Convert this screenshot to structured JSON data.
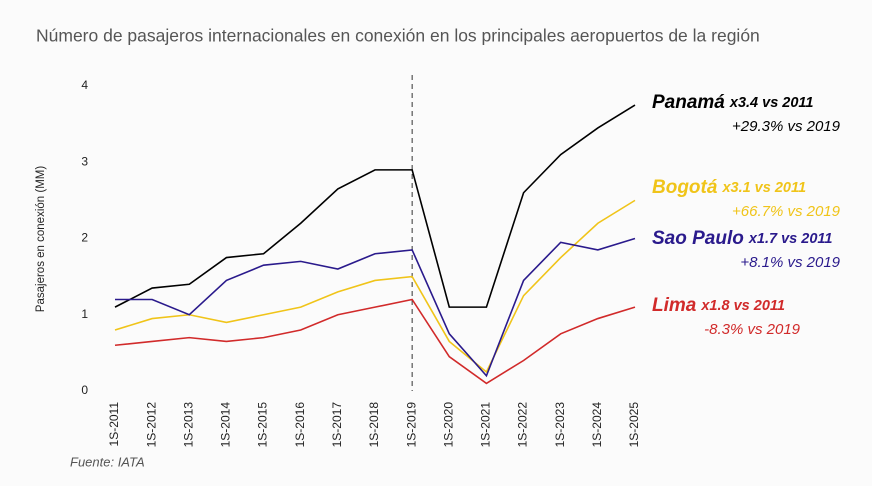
{
  "chart_data": {
    "type": "line",
    "title": "Número de pasajeros internacionales en conexión en los principales aeropuertos de la región",
    "y_label": "Pasajeros en conexión (MM)",
    "source": "Fuente: IATA",
    "categories": [
      "1S-2011",
      "1S-2012",
      "1S-2013",
      "1S-2014",
      "1S-2015",
      "1S-2016",
      "1S-2017",
      "1S-2018",
      "1S-2019",
      "1S-2020",
      "1S-2021",
      "1S-2022",
      "1S-2023",
      "1S-2024",
      "1S-2025"
    ],
    "reference_line": "1S-2019",
    "ylim": [
      0,
      4
    ],
    "yticks": [
      0,
      1,
      2,
      3,
      4
    ],
    "grid": false,
    "series": [
      {
        "name": "Panamá",
        "color": "#000000",
        "growth": "x3.4 vs 2011",
        "change": "+29.3% vs 2019",
        "values": [
          1.1,
          1.35,
          1.4,
          1.75,
          1.8,
          2.2,
          2.65,
          2.9,
          2.9,
          1.1,
          1.1,
          2.6,
          3.1,
          3.45,
          3.75
        ]
      },
      {
        "name": "Bogotá",
        "color": "#f0c419",
        "growth": "x3.1 vs 2011",
        "change": "+66.7% vs 2019",
        "values": [
          0.8,
          0.95,
          1.0,
          0.9,
          1.0,
          1.1,
          1.3,
          1.45,
          1.5,
          0.65,
          0.25,
          1.25,
          1.75,
          2.2,
          2.5
        ]
      },
      {
        "name": "Sao Paulo",
        "color": "#2a1a8c",
        "growth": "x1.7 vs 2011",
        "change": "+8.1% vs 2019",
        "values": [
          1.2,
          1.2,
          1.0,
          1.45,
          1.65,
          1.7,
          1.6,
          1.8,
          1.85,
          0.75,
          0.2,
          1.45,
          1.95,
          1.85,
          2.0
        ]
      },
      {
        "name": "Lima",
        "color": "#d12a2a",
        "growth": "x1.8 vs 2011",
        "change": "-8.3% vs 2019",
        "values": [
          0.6,
          0.65,
          0.7,
          0.65,
          0.7,
          0.8,
          1.0,
          1.1,
          1.2,
          0.45,
          0.1,
          0.4,
          0.75,
          0.95,
          1.1
        ]
      }
    ]
  }
}
